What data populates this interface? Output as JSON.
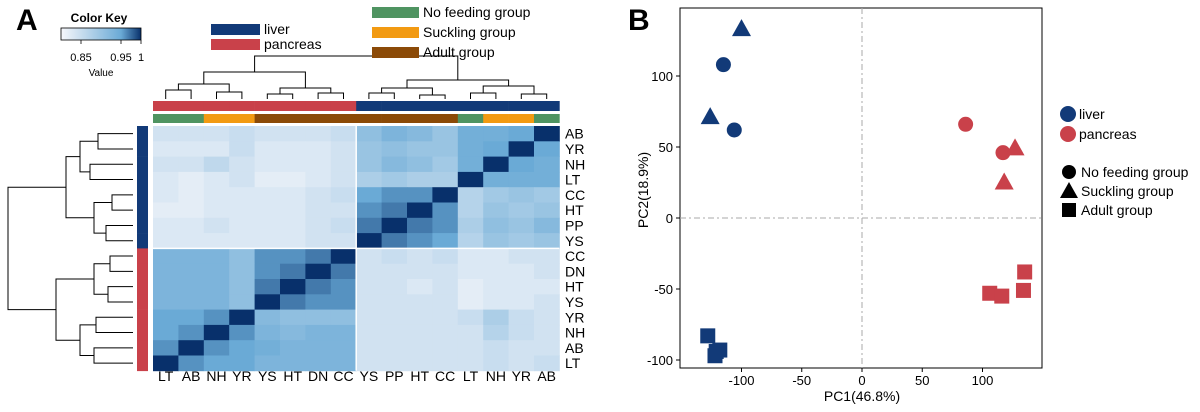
{
  "panels": {
    "a": "A",
    "b": "B"
  },
  "colors": {
    "liver": "#123a78",
    "pancreas": "#c9414a",
    "no_feeding": "#4f9461",
    "suckling": "#f29a12",
    "adult": "#8b4a07",
    "heat_low": "#f7f7fb",
    "heat_mid": "#6aaad6",
    "heat_high": "#08306b"
  },
  "icons": {
    "no_feeding": "circle",
    "suckling": "triangle",
    "adult": "square"
  },
  "chart_data": [
    {
      "type": "heatmap",
      "panel": "A",
      "color_key": {
        "title": "Color Key",
        "xlabel": "Value",
        "ticks": [
          "0.85",
          "0.95",
          "1"
        ],
        "range": [
          0.8,
          1.0
        ]
      },
      "tissue_legend": [
        {
          "key": "liver",
          "label": "liver"
        },
        {
          "key": "pancreas",
          "label": "pancreas"
        }
      ],
      "group_legend": [
        {
          "key": "no_feeding",
          "label": "No feeding group"
        },
        {
          "key": "suckling",
          "label": "Suckling group"
        },
        {
          "key": "adult",
          "label": "Adult group"
        }
      ],
      "columns": [
        {
          "label": "LT",
          "tissue": "pancreas",
          "group": "no_feeding"
        },
        {
          "label": "AB",
          "tissue": "pancreas",
          "group": "no_feeding"
        },
        {
          "label": "NH",
          "tissue": "pancreas",
          "group": "suckling"
        },
        {
          "label": "YR",
          "tissue": "pancreas",
          "group": "suckling"
        },
        {
          "label": "YS",
          "tissue": "pancreas",
          "group": "adult"
        },
        {
          "label": "HT",
          "tissue": "pancreas",
          "group": "adult"
        },
        {
          "label": "DN",
          "tissue": "pancreas",
          "group": "adult"
        },
        {
          "label": "CC",
          "tissue": "pancreas",
          "group": "adult"
        },
        {
          "label": "YS",
          "tissue": "liver",
          "group": "adult"
        },
        {
          "label": "PP",
          "tissue": "liver",
          "group": "adult"
        },
        {
          "label": "HT",
          "tissue": "liver",
          "group": "adult"
        },
        {
          "label": "CC",
          "tissue": "liver",
          "group": "adult"
        },
        {
          "label": "LT",
          "tissue": "liver",
          "group": "no_feeding"
        },
        {
          "label": "NH",
          "tissue": "liver",
          "group": "suckling"
        },
        {
          "label": "YR",
          "tissue": "liver",
          "group": "suckling"
        },
        {
          "label": "AB",
          "tissue": "liver",
          "group": "no_feeding"
        }
      ],
      "rows": [
        {
          "label": "AB",
          "tissue": "liver"
        },
        {
          "label": "YR",
          "tissue": "liver"
        },
        {
          "label": "NH",
          "tissue": "liver"
        },
        {
          "label": "LT",
          "tissue": "liver"
        },
        {
          "label": "CC",
          "tissue": "liver"
        },
        {
          "label": "HT",
          "tissue": "liver"
        },
        {
          "label": "PP",
          "tissue": "liver"
        },
        {
          "label": "YS",
          "tissue": "liver"
        },
        {
          "label": "CC",
          "tissue": "pancreas"
        },
        {
          "label": "DN",
          "tissue": "pancreas"
        },
        {
          "label": "HT",
          "tissue": "pancreas"
        },
        {
          "label": "YS",
          "tissue": "pancreas"
        },
        {
          "label": "YR",
          "tissue": "pancreas"
        },
        {
          "label": "NH",
          "tissue": "pancreas"
        },
        {
          "label": "AB",
          "tissue": "pancreas"
        },
        {
          "label": "LT",
          "tissue": "pancreas"
        }
      ],
      "values": [
        [
          0.84,
          0.84,
          0.84,
          0.85,
          0.84,
          0.84,
          0.84,
          0.85,
          0.91,
          0.93,
          0.92,
          0.9,
          0.94,
          0.94,
          0.95,
          1.0
        ],
        [
          0.83,
          0.83,
          0.83,
          0.85,
          0.83,
          0.83,
          0.83,
          0.84,
          0.9,
          0.91,
          0.9,
          0.9,
          0.94,
          0.95,
          1.0,
          0.95
        ],
        [
          0.84,
          0.84,
          0.86,
          0.84,
          0.83,
          0.83,
          0.83,
          0.84,
          0.9,
          0.92,
          0.91,
          0.89,
          0.94,
          1.0,
          0.95,
          0.94
        ],
        [
          0.83,
          0.82,
          0.83,
          0.84,
          0.82,
          0.82,
          0.83,
          0.84,
          0.88,
          0.89,
          0.88,
          0.88,
          1.0,
          0.94,
          0.94,
          0.94
        ],
        [
          0.83,
          0.82,
          0.83,
          0.83,
          0.83,
          0.83,
          0.84,
          0.85,
          0.95,
          0.96,
          0.96,
          1.0,
          0.87,
          0.89,
          0.9,
          0.89
        ],
        [
          0.82,
          0.82,
          0.83,
          0.83,
          0.83,
          0.83,
          0.84,
          0.84,
          0.96,
          0.97,
          1.0,
          0.96,
          0.87,
          0.9,
          0.89,
          0.9
        ],
        [
          0.83,
          0.83,
          0.84,
          0.83,
          0.83,
          0.83,
          0.84,
          0.85,
          0.97,
          1.0,
          0.97,
          0.96,
          0.88,
          0.91,
          0.9,
          0.92
        ],
        [
          0.83,
          0.83,
          0.83,
          0.83,
          0.83,
          0.83,
          0.84,
          0.84,
          1.0,
          0.97,
          0.96,
          0.95,
          0.87,
          0.9,
          0.89,
          0.9
        ],
        [
          0.93,
          0.93,
          0.93,
          0.91,
          0.96,
          0.96,
          0.97,
          1.0,
          0.84,
          0.85,
          0.84,
          0.85,
          0.83,
          0.83,
          0.84,
          0.84
        ],
        [
          0.93,
          0.93,
          0.93,
          0.91,
          0.96,
          0.97,
          1.0,
          0.97,
          0.84,
          0.84,
          0.84,
          0.84,
          0.83,
          0.83,
          0.83,
          0.84
        ],
        [
          0.93,
          0.93,
          0.93,
          0.91,
          0.97,
          1.0,
          0.97,
          0.96,
          0.84,
          0.84,
          0.83,
          0.84,
          0.82,
          0.83,
          0.83,
          0.83
        ],
        [
          0.93,
          0.93,
          0.93,
          0.91,
          1.0,
          0.97,
          0.96,
          0.96,
          0.84,
          0.84,
          0.84,
          0.84,
          0.82,
          0.83,
          0.83,
          0.84
        ],
        [
          0.95,
          0.95,
          0.96,
          1.0,
          0.92,
          0.91,
          0.91,
          0.91,
          0.84,
          0.84,
          0.84,
          0.84,
          0.85,
          0.88,
          0.85,
          0.84
        ],
        [
          0.95,
          0.96,
          1.0,
          0.96,
          0.93,
          0.92,
          0.93,
          0.93,
          0.84,
          0.84,
          0.84,
          0.84,
          0.84,
          0.87,
          0.85,
          0.84
        ],
        [
          0.96,
          1.0,
          0.96,
          0.95,
          0.94,
          0.93,
          0.93,
          0.93,
          0.84,
          0.84,
          0.84,
          0.84,
          0.84,
          0.85,
          0.84,
          0.84
        ],
        [
          1.0,
          0.96,
          0.95,
          0.95,
          0.93,
          0.93,
          0.93,
          0.93,
          0.84,
          0.84,
          0.84,
          0.84,
          0.84,
          0.85,
          0.84,
          0.85
        ]
      ]
    },
    {
      "type": "scatter",
      "panel": "B",
      "xlabel": "PC1(46.8%)",
      "ylabel": "PC2(18.9%)",
      "xlim": [
        -140,
        140
      ],
      "ylim": [
        -105,
        140
      ],
      "xticks": [
        -100,
        -50,
        0,
        50,
        100
      ],
      "yticks": [
        -100,
        -50,
        0,
        50,
        100
      ],
      "reference_lines": {
        "x": 0,
        "y": 0,
        "style": "dashdot"
      },
      "legend_tissue": [
        {
          "key": "liver",
          "label": "liver"
        },
        {
          "key": "pancreas",
          "label": "pancreas"
        }
      ],
      "legend_group": [
        {
          "key": "no_feeding",
          "label": "No feeding group"
        },
        {
          "key": "suckling",
          "label": "Suckling group"
        },
        {
          "key": "adult",
          "label": "Adult group"
        }
      ],
      "legend_position": "right",
      "points": [
        {
          "x": -115,
          "y": 108,
          "tissue": "liver",
          "group": "no_feeding"
        },
        {
          "x": -106,
          "y": 62,
          "tissue": "liver",
          "group": "no_feeding"
        },
        {
          "x": -100,
          "y": 133,
          "tissue": "liver",
          "group": "suckling"
        },
        {
          "x": -126,
          "y": 71,
          "tissue": "liver",
          "group": "suckling"
        },
        {
          "x": -128,
          "y": -83,
          "tissue": "liver",
          "group": "adult"
        },
        {
          "x": -121,
          "y": -94,
          "tissue": "liver",
          "group": "adult"
        },
        {
          "x": -118,
          "y": -93,
          "tissue": "liver",
          "group": "adult"
        },
        {
          "x": -122,
          "y": -97,
          "tissue": "liver",
          "group": "adult"
        },
        {
          "x": 86,
          "y": 66,
          "tissue": "pancreas",
          "group": "no_feeding"
        },
        {
          "x": 117,
          "y": 46,
          "tissue": "pancreas",
          "group": "no_feeding"
        },
        {
          "x": 127,
          "y": 49,
          "tissue": "pancreas",
          "group": "suckling"
        },
        {
          "x": 118,
          "y": 25,
          "tissue": "pancreas",
          "group": "suckling"
        },
        {
          "x": 135,
          "y": -38,
          "tissue": "pancreas",
          "group": "adult"
        },
        {
          "x": 134,
          "y": -51,
          "tissue": "pancreas",
          "group": "adult"
        },
        {
          "x": 106,
          "y": -53,
          "tissue": "pancreas",
          "group": "adult"
        },
        {
          "x": 116,
          "y": -55,
          "tissue": "pancreas",
          "group": "adult"
        }
      ]
    }
  ]
}
